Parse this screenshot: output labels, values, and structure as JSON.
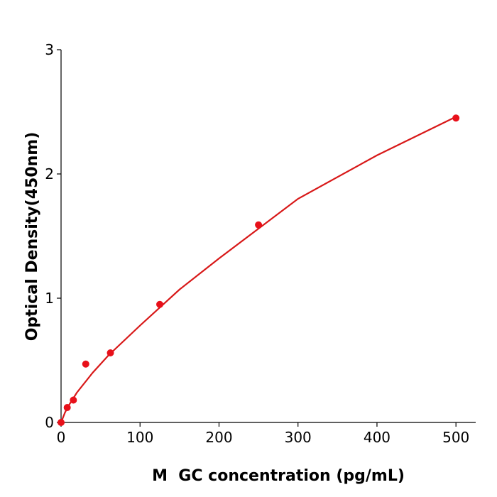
{
  "chart_data": {
    "type": "scatter",
    "x_label": "M  GC concentration (pg/mL)",
    "y_label": "Optical Density(450nm)",
    "xlim": [
      0,
      525
    ],
    "ylim": [
      0,
      3
    ],
    "xticks": [
      0,
      100,
      200,
      300,
      400,
      500
    ],
    "yticks": [
      0,
      1,
      2,
      3
    ],
    "series": [
      {
        "type": "scatter",
        "color": "#e8101a",
        "x": [
          0,
          7.8,
          15.6,
          31.25,
          62.5,
          125,
          250,
          500
        ],
        "values": [
          0,
          0.12,
          0.18,
          0.47,
          0.56,
          0.95,
          1.59,
          2.45
        ]
      },
      {
        "type": "line",
        "color": "#d81818",
        "x": [
          0,
          5,
          10,
          20,
          40,
          60,
          100,
          150,
          200,
          300,
          400,
          500
        ],
        "values": [
          0,
          0.08,
          0.14,
          0.24,
          0.4,
          0.54,
          0.78,
          1.07,
          1.32,
          1.8,
          2.15,
          2.46
        ]
      }
    ]
  }
}
